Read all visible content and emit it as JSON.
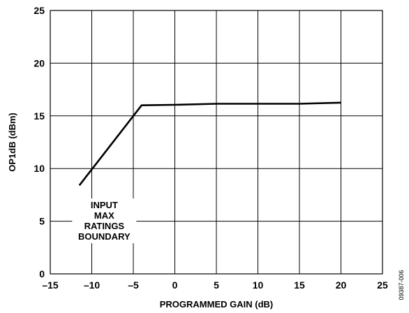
{
  "chart_data": {
    "type": "line",
    "xlabel": "PROGRAMMED GAIN (dB)",
    "ylabel": "OP1dB (dBm)",
    "xlim": [
      -15,
      25
    ],
    "ylim": [
      0,
      25
    ],
    "x_ticks": [
      -15,
      -10,
      -5,
      0,
      5,
      10,
      15,
      20,
      25
    ],
    "x_tick_labels": [
      "–15",
      "–10",
      "–5",
      "0",
      "5",
      "10",
      "15",
      "20",
      "25"
    ],
    "y_ticks": [
      0,
      5,
      10,
      15,
      20,
      25
    ],
    "y_tick_labels": [
      "0",
      "5",
      "10",
      "15",
      "20",
      "25"
    ],
    "grid": true,
    "series": [
      {
        "x": [
          -11.5,
          -4,
          0,
          5,
          10,
          15,
          20
        ],
        "y": [
          8.4,
          16.0,
          16.05,
          16.15,
          16.15,
          16.15,
          16.25
        ]
      }
    ],
    "annotation": {
      "lines": [
        "INPUT",
        "MAX",
        "RATINGS",
        "BOUNDARY"
      ],
      "x": -8.5,
      "y": 5
    }
  },
  "figure_id": "09387-006"
}
